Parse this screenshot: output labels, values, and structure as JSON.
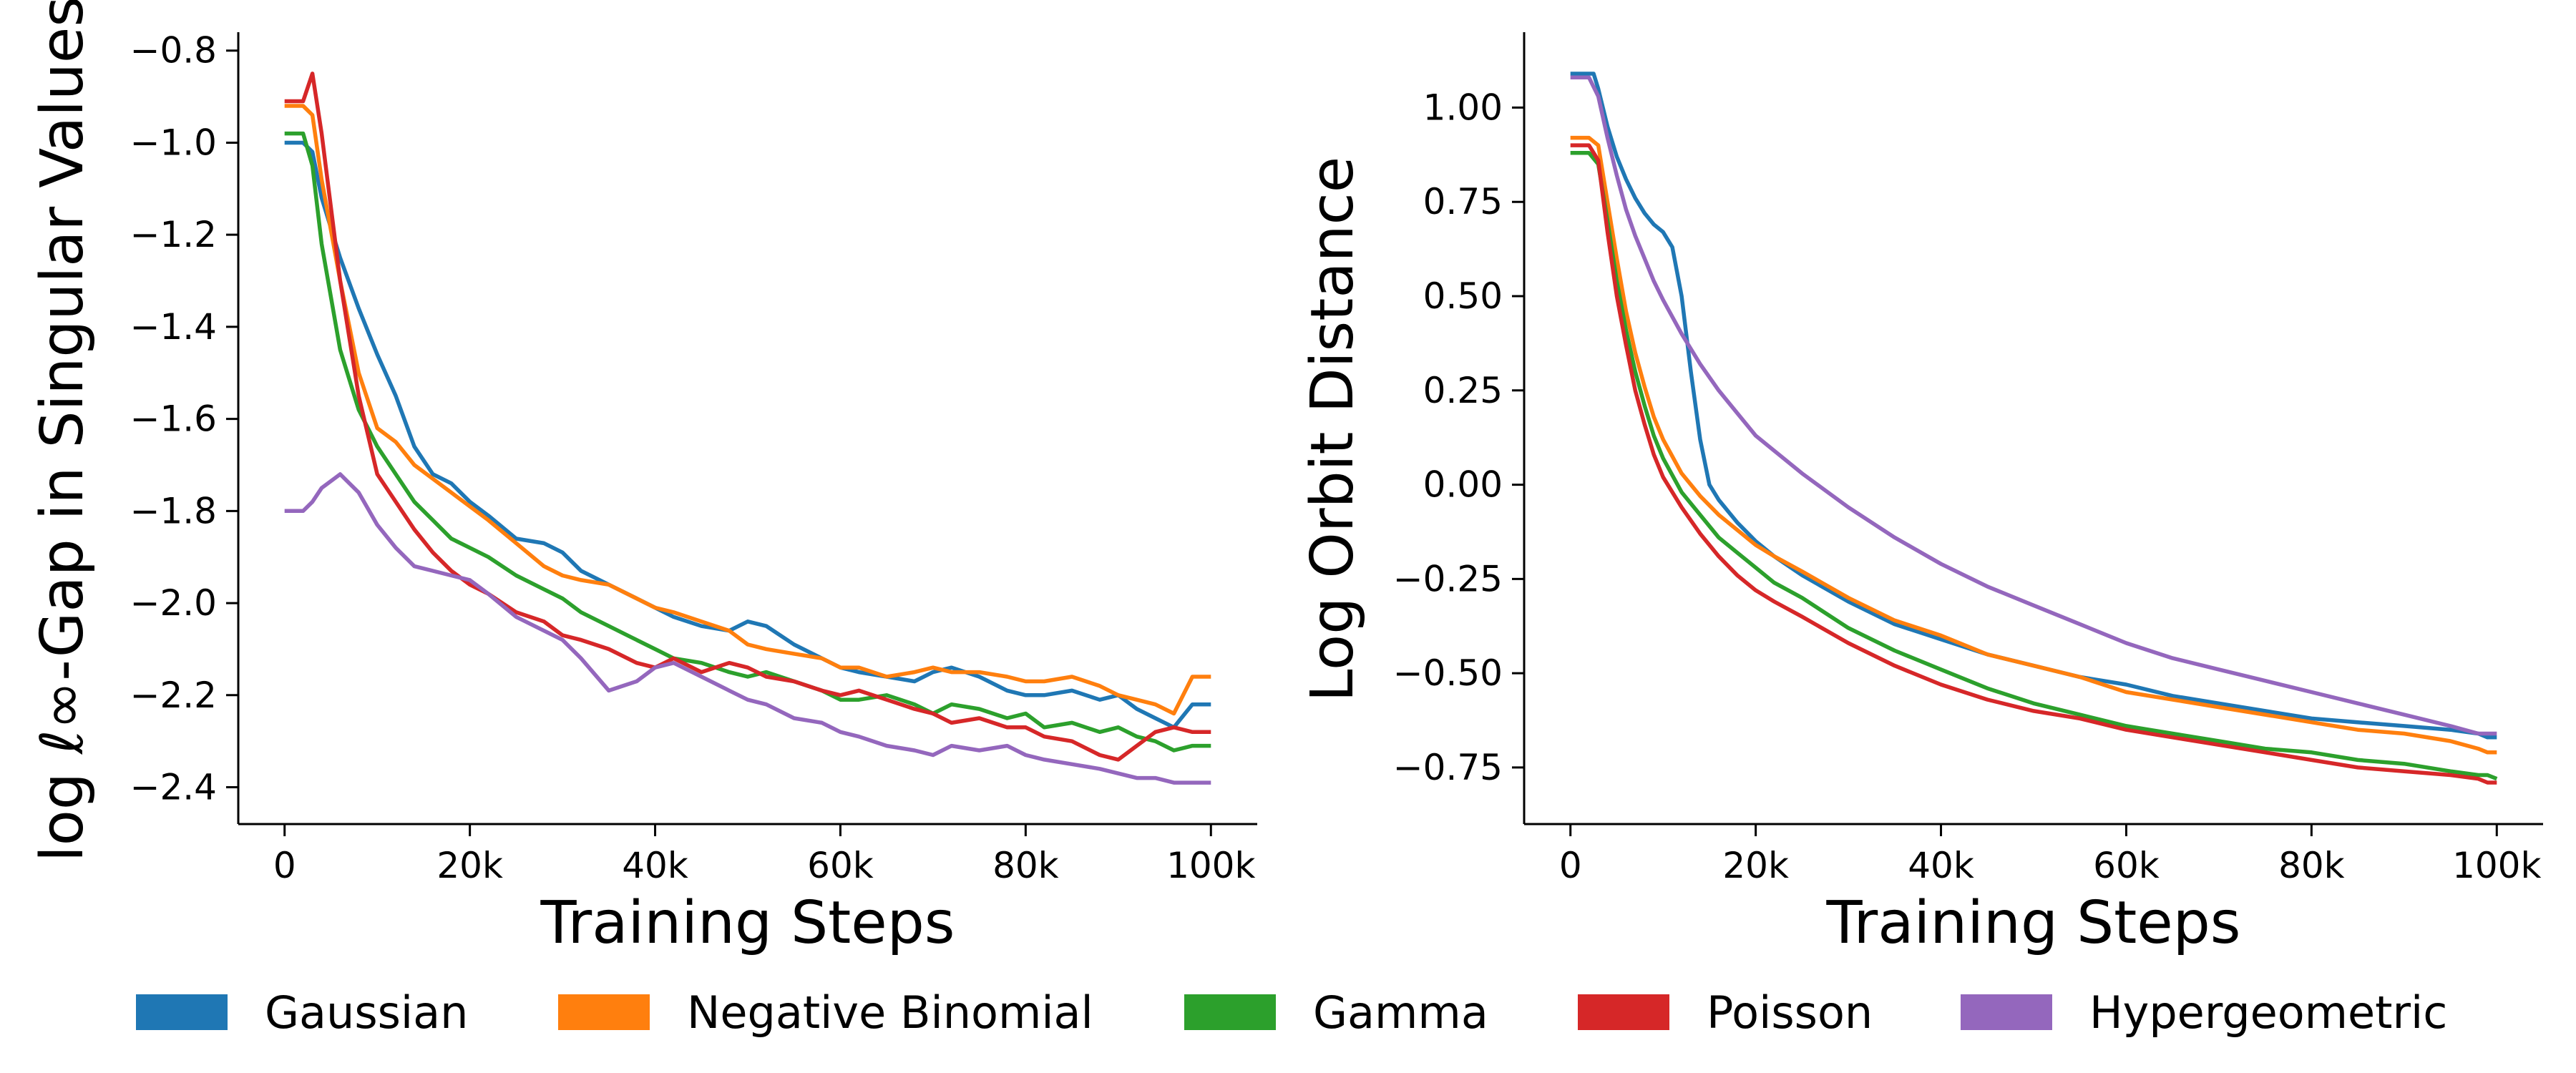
{
  "chart_data": [
    {
      "type": "line",
      "xlabel": "Training Steps",
      "ylabel": "log ℓ∞-Gap in Singular Values",
      "xlim": [
        -5000,
        105000
      ],
      "ylim": [
        -2.48,
        -0.76
      ],
      "xticks": [
        0,
        20000,
        40000,
        60000,
        80000,
        100000
      ],
      "xtick_labels": [
        "0",
        "20k",
        "40k",
        "60k",
        "80k",
        "100k"
      ],
      "yticks": [
        -2.4,
        -2.2,
        -2.0,
        -1.8,
        -1.6,
        -1.4,
        -1.2,
        -1.0,
        -0.8
      ],
      "ytick_labels": [
        "−2.4",
        "−2.2",
        "−2.0",
        "−1.8",
        "−1.6",
        "−1.4",
        "−1.2",
        "−1.0",
        "−0.8"
      ],
      "grid": false,
      "series": [
        {
          "name": "Gaussian",
          "color": "#1f77b4",
          "x": [
            0,
            2000,
            3000,
            4000,
            6000,
            8000,
            10000,
            12000,
            14000,
            16000,
            18000,
            20000,
            22000,
            25000,
            28000,
            30000,
            32000,
            35000,
            38000,
            40000,
            42000,
            45000,
            48000,
            50000,
            52000,
            55000,
            58000,
            60000,
            62000,
            65000,
            68000,
            70000,
            72000,
            75000,
            78000,
            80000,
            82000,
            85000,
            88000,
            90000,
            92000,
            94000,
            96000,
            98000,
            99000,
            100000
          ],
          "y": [
            -1.0,
            -1.0,
            -1.02,
            -1.12,
            -1.25,
            -1.36,
            -1.46,
            -1.55,
            -1.66,
            -1.72,
            -1.74,
            -1.78,
            -1.81,
            -1.86,
            -1.87,
            -1.89,
            -1.93,
            -1.96,
            -1.99,
            -2.01,
            -2.03,
            -2.05,
            -2.06,
            -2.04,
            -2.05,
            -2.09,
            -2.12,
            -2.14,
            -2.15,
            -2.16,
            -2.17,
            -2.15,
            -2.14,
            -2.16,
            -2.19,
            -2.2,
            -2.2,
            -2.19,
            -2.21,
            -2.2,
            -2.23,
            -2.25,
            -2.27,
            -2.22,
            -2.22,
            -2.22
          ]
        },
        {
          "name": "Negative Binomial",
          "color": "#ff7f0e",
          "x": [
            0,
            2000,
            3000,
            4000,
            6000,
            8000,
            10000,
            12000,
            14000,
            16000,
            18000,
            20000,
            22000,
            25000,
            28000,
            30000,
            32000,
            35000,
            38000,
            40000,
            42000,
            45000,
            48000,
            50000,
            52000,
            55000,
            58000,
            60000,
            62000,
            65000,
            68000,
            70000,
            72000,
            75000,
            78000,
            80000,
            82000,
            85000,
            88000,
            90000,
            92000,
            94000,
            96000,
            98000,
            99000,
            100000
          ],
          "y": [
            -0.92,
            -0.92,
            -0.94,
            -1.08,
            -1.3,
            -1.5,
            -1.62,
            -1.65,
            -1.7,
            -1.73,
            -1.76,
            -1.79,
            -1.82,
            -1.87,
            -1.92,
            -1.94,
            -1.95,
            -1.96,
            -1.99,
            -2.01,
            -2.02,
            -2.04,
            -2.06,
            -2.09,
            -2.1,
            -2.11,
            -2.12,
            -2.14,
            -2.14,
            -2.16,
            -2.15,
            -2.14,
            -2.15,
            -2.15,
            -2.16,
            -2.17,
            -2.17,
            -2.16,
            -2.18,
            -2.2,
            -2.21,
            -2.22,
            -2.24,
            -2.16,
            -2.16,
            -2.16
          ]
        },
        {
          "name": "Gamma",
          "color": "#2ca02c",
          "x": [
            0,
            2000,
            3000,
            4000,
            6000,
            8000,
            10000,
            12000,
            14000,
            16000,
            18000,
            20000,
            22000,
            25000,
            28000,
            30000,
            32000,
            35000,
            38000,
            40000,
            42000,
            45000,
            48000,
            50000,
            52000,
            55000,
            58000,
            60000,
            62000,
            65000,
            68000,
            70000,
            72000,
            75000,
            78000,
            80000,
            82000,
            85000,
            88000,
            90000,
            92000,
            94000,
            96000,
            98000,
            99000,
            100000
          ],
          "y": [
            -0.98,
            -0.98,
            -1.05,
            -1.22,
            -1.45,
            -1.58,
            -1.66,
            -1.72,
            -1.78,
            -1.82,
            -1.86,
            -1.88,
            -1.9,
            -1.94,
            -1.97,
            -1.99,
            -2.02,
            -2.05,
            -2.08,
            -2.1,
            -2.12,
            -2.13,
            -2.15,
            -2.16,
            -2.15,
            -2.17,
            -2.19,
            -2.21,
            -2.21,
            -2.2,
            -2.22,
            -2.24,
            -2.22,
            -2.23,
            -2.25,
            -2.24,
            -2.27,
            -2.26,
            -2.28,
            -2.27,
            -2.29,
            -2.3,
            -2.32,
            -2.31,
            -2.31,
            -2.31
          ]
        },
        {
          "name": "Poisson",
          "color": "#d62728",
          "x": [
            0,
            2000,
            3000,
            4000,
            6000,
            8000,
            10000,
            12000,
            14000,
            16000,
            18000,
            20000,
            22000,
            25000,
            28000,
            30000,
            32000,
            35000,
            38000,
            40000,
            42000,
            45000,
            48000,
            50000,
            52000,
            55000,
            58000,
            60000,
            62000,
            65000,
            68000,
            70000,
            72000,
            75000,
            78000,
            80000,
            82000,
            85000,
            88000,
            90000,
            92000,
            94000,
            96000,
            98000,
            99000,
            100000
          ],
          "y": [
            -0.91,
            -0.91,
            -0.85,
            -0.98,
            -1.3,
            -1.55,
            -1.72,
            -1.78,
            -1.84,
            -1.89,
            -1.93,
            -1.96,
            -1.98,
            -2.02,
            -2.04,
            -2.07,
            -2.08,
            -2.1,
            -2.13,
            -2.14,
            -2.12,
            -2.15,
            -2.13,
            -2.14,
            -2.16,
            -2.17,
            -2.19,
            -2.2,
            -2.19,
            -2.21,
            -2.23,
            -2.24,
            -2.26,
            -2.25,
            -2.27,
            -2.27,
            -2.29,
            -2.3,
            -2.33,
            -2.34,
            -2.31,
            -2.28,
            -2.27,
            -2.28,
            -2.28,
            -2.28
          ]
        },
        {
          "name": "Hypergeometric",
          "color": "#9467bd",
          "x": [
            0,
            2000,
            3000,
            4000,
            6000,
            8000,
            10000,
            12000,
            14000,
            16000,
            18000,
            20000,
            22000,
            25000,
            28000,
            30000,
            32000,
            35000,
            38000,
            40000,
            42000,
            45000,
            48000,
            50000,
            52000,
            55000,
            58000,
            60000,
            62000,
            65000,
            68000,
            70000,
            72000,
            75000,
            78000,
            80000,
            82000,
            85000,
            88000,
            90000,
            92000,
            94000,
            96000,
            98000,
            99000,
            100000
          ],
          "y": [
            -1.8,
            -1.8,
            -1.78,
            -1.75,
            -1.72,
            -1.76,
            -1.83,
            -1.88,
            -1.92,
            -1.93,
            -1.94,
            -1.95,
            -1.98,
            -2.03,
            -2.06,
            -2.08,
            -2.12,
            -2.19,
            -2.17,
            -2.14,
            -2.13,
            -2.16,
            -2.19,
            -2.21,
            -2.22,
            -2.25,
            -2.26,
            -2.28,
            -2.29,
            -2.31,
            -2.32,
            -2.33,
            -2.31,
            -2.32,
            -2.31,
            -2.33,
            -2.34,
            -2.35,
            -2.36,
            -2.37,
            -2.38,
            -2.38,
            -2.39,
            -2.39,
            -2.39,
            -2.39
          ]
        }
      ]
    },
    {
      "type": "line",
      "xlabel": "Training Steps",
      "ylabel": "Log Orbit Distance",
      "xlim": [
        -5000,
        105000
      ],
      "ylim": [
        -0.9,
        1.2
      ],
      "xticks": [
        0,
        20000,
        40000,
        60000,
        80000,
        100000
      ],
      "xtick_labels": [
        "0",
        "20k",
        "40k",
        "60k",
        "80k",
        "100k"
      ],
      "yticks": [
        -0.75,
        -0.5,
        -0.25,
        0.0,
        0.25,
        0.5,
        0.75,
        1.0
      ],
      "ytick_labels": [
        "−0.75",
        "−0.50",
        "−0.25",
        "0.00",
        "0.25",
        "0.50",
        "0.75",
        "1.00"
      ],
      "grid": false,
      "series": [
        {
          "name": "Gaussian",
          "color": "#1f77b4",
          "x": [
            0,
            2500,
            3000,
            4000,
            5000,
            6000,
            7000,
            8000,
            9000,
            10000,
            11000,
            12000,
            13000,
            14000,
            15000,
            16000,
            18000,
            20000,
            22000,
            25000,
            30000,
            35000,
            40000,
            45000,
            50000,
            55000,
            60000,
            65000,
            70000,
            75000,
            80000,
            85000,
            90000,
            95000,
            98000,
            99000,
            100000
          ],
          "y": [
            1.09,
            1.09,
            1.05,
            0.95,
            0.87,
            0.81,
            0.76,
            0.72,
            0.69,
            0.67,
            0.63,
            0.5,
            0.3,
            0.12,
            0.0,
            -0.04,
            -0.1,
            -0.15,
            -0.19,
            -0.24,
            -0.31,
            -0.37,
            -0.41,
            -0.45,
            -0.48,
            -0.51,
            -0.53,
            -0.56,
            -0.58,
            -0.6,
            -0.62,
            -0.63,
            -0.64,
            -0.65,
            -0.66,
            -0.67,
            -0.67
          ]
        },
        {
          "name": "Negative Binomial",
          "color": "#ff7f0e",
          "x": [
            0,
            2000,
            3000,
            4000,
            5000,
            6000,
            7000,
            8000,
            9000,
            10000,
            12000,
            14000,
            16000,
            18000,
            20000,
            22000,
            25000,
            30000,
            35000,
            40000,
            45000,
            50000,
            55000,
            60000,
            65000,
            70000,
            75000,
            80000,
            85000,
            90000,
            95000,
            98000,
            99000,
            100000
          ],
          "y": [
            0.92,
            0.92,
            0.9,
            0.75,
            0.6,
            0.46,
            0.35,
            0.26,
            0.18,
            0.12,
            0.03,
            -0.03,
            -0.08,
            -0.12,
            -0.16,
            -0.19,
            -0.23,
            -0.3,
            -0.36,
            -0.4,
            -0.45,
            -0.48,
            -0.51,
            -0.55,
            -0.57,
            -0.59,
            -0.61,
            -0.63,
            -0.65,
            -0.66,
            -0.68,
            -0.7,
            -0.71,
            -0.71
          ]
        },
        {
          "name": "Gamma",
          "color": "#2ca02c",
          "x": [
            0,
            2000,
            3000,
            4000,
            5000,
            6000,
            7000,
            8000,
            9000,
            10000,
            12000,
            14000,
            16000,
            18000,
            20000,
            22000,
            25000,
            30000,
            35000,
            40000,
            45000,
            50000,
            55000,
            60000,
            65000,
            70000,
            75000,
            80000,
            85000,
            90000,
            95000,
            98000,
            99000,
            100000
          ],
          "y": [
            0.88,
            0.88,
            0.85,
            0.7,
            0.54,
            0.41,
            0.3,
            0.21,
            0.13,
            0.07,
            -0.02,
            -0.08,
            -0.14,
            -0.18,
            -0.22,
            -0.26,
            -0.3,
            -0.38,
            -0.44,
            -0.49,
            -0.54,
            -0.58,
            -0.61,
            -0.64,
            -0.66,
            -0.68,
            -0.7,
            -0.71,
            -0.73,
            -0.74,
            -0.76,
            -0.77,
            -0.77,
            -0.78
          ]
        },
        {
          "name": "Poisson",
          "color": "#d62728",
          "x": [
            0,
            2000,
            3000,
            4000,
            5000,
            6000,
            7000,
            8000,
            9000,
            10000,
            12000,
            14000,
            16000,
            18000,
            20000,
            22000,
            25000,
            30000,
            35000,
            40000,
            45000,
            50000,
            55000,
            60000,
            65000,
            70000,
            75000,
            80000,
            85000,
            90000,
            95000,
            98000,
            99000,
            100000
          ],
          "y": [
            0.9,
            0.9,
            0.86,
            0.67,
            0.5,
            0.37,
            0.25,
            0.16,
            0.08,
            0.02,
            -0.06,
            -0.13,
            -0.19,
            -0.24,
            -0.28,
            -0.31,
            -0.35,
            -0.42,
            -0.48,
            -0.53,
            -0.57,
            -0.6,
            -0.62,
            -0.65,
            -0.67,
            -0.69,
            -0.71,
            -0.73,
            -0.75,
            -0.76,
            -0.77,
            -0.78,
            -0.79,
            -0.79
          ]
        },
        {
          "name": "Hypergeometric",
          "color": "#9467bd",
          "x": [
            0,
            2000,
            3000,
            4000,
            5000,
            6000,
            7000,
            8000,
            9000,
            10000,
            12000,
            14000,
            16000,
            18000,
            20000,
            22000,
            25000,
            30000,
            35000,
            40000,
            45000,
            50000,
            55000,
            60000,
            65000,
            70000,
            75000,
            80000,
            85000,
            90000,
            95000,
            98000,
            99000,
            100000
          ],
          "y": [
            1.08,
            1.08,
            1.03,
            0.92,
            0.82,
            0.73,
            0.66,
            0.6,
            0.54,
            0.49,
            0.4,
            0.32,
            0.25,
            0.19,
            0.13,
            0.09,
            0.03,
            -0.06,
            -0.14,
            -0.21,
            -0.27,
            -0.32,
            -0.37,
            -0.42,
            -0.46,
            -0.49,
            -0.52,
            -0.55,
            -0.58,
            -0.61,
            -0.64,
            -0.66,
            -0.66,
            -0.66
          ]
        }
      ]
    }
  ],
  "legend": {
    "placement": "bottom",
    "entries": [
      {
        "label": "Gaussian",
        "color": "#1f77b4"
      },
      {
        "label": "Negative Binomial",
        "color": "#ff7f0e"
      },
      {
        "label": "Gamma",
        "color": "#2ca02c"
      },
      {
        "label": "Poisson",
        "color": "#d62728"
      },
      {
        "label": "Hypergeometric",
        "color": "#9467bd"
      }
    ]
  }
}
